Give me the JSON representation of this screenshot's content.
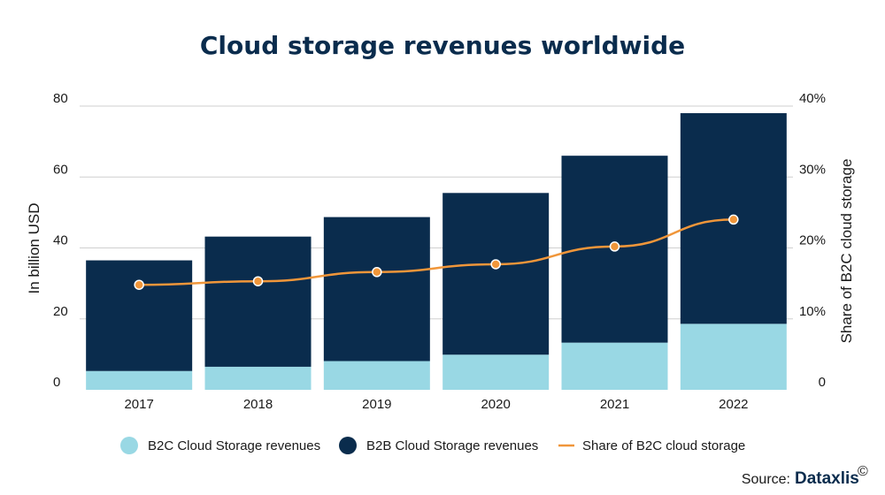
{
  "chart_data": {
    "type": "bar",
    "title": "Cloud storage revenues worldwide",
    "categories": [
      "2017",
      "2018",
      "2019",
      "2020",
      "2021",
      "2022"
    ],
    "series": [
      {
        "name": "B2C Cloud Storage revenues",
        "kind": "stacked-bar",
        "axis": "left",
        "color": "#99d8e4",
        "values": [
          5.3,
          6.5,
          8.1,
          9.9,
          13.3,
          18.6
        ]
      },
      {
        "name": "B2B Cloud Storage revenues",
        "kind": "stacked-bar",
        "axis": "left",
        "color": "#0a2c4d",
        "values": [
          31.2,
          36.7,
          40.6,
          45.6,
          52.7,
          59.4
        ]
      },
      {
        "name": "Share of B2C cloud storage",
        "kind": "line",
        "axis": "right",
        "unit": "%",
        "color": "#f0963a",
        "values": [
          14.8,
          15.3,
          16.6,
          17.7,
          20.2,
          24.0
        ]
      }
    ],
    "ylabel": "In billion USD",
    "ylim": [
      0,
      80
    ],
    "yticks": [
      "0",
      "20",
      "40",
      "60",
      "80"
    ],
    "y2label": "Share of B2C cloud storage",
    "y2lim": [
      0,
      40
    ],
    "y2ticks": [
      "0",
      "10%",
      "20%",
      "30%",
      "40%"
    ],
    "grid": true,
    "legend_position": "bottom"
  },
  "source": {
    "label": "Source:",
    "brand": "Dataxlis",
    "mark": "©"
  }
}
